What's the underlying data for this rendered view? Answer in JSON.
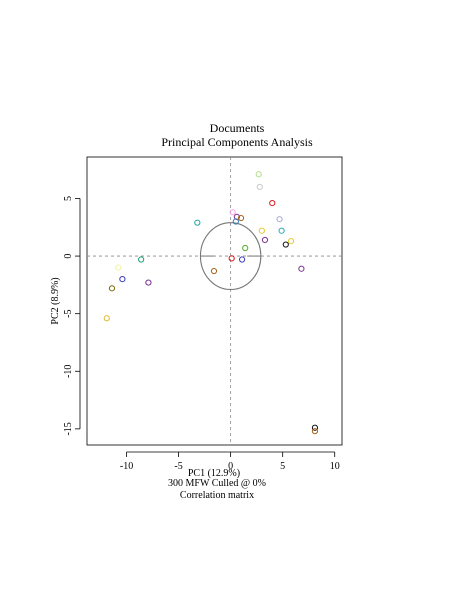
{
  "chart_data": {
    "type": "scatter",
    "title": "Documents",
    "subtitle": "Principal Components Analysis",
    "xlabel": "PC1 (12.9%)",
    "ylabel": "PC2 (8.9%)",
    "caption_lines": [
      "300 MFW  Culled @ 0%",
      "Correlation matrix"
    ],
    "xlim": [
      -13.8,
      10.7
    ],
    "ylim": [
      -16.4,
      8.6
    ],
    "x_ticks": [
      -10,
      -5,
      0,
      5,
      10
    ],
    "y_ticks": [
      -15,
      -10,
      -5,
      0,
      5
    ],
    "grid": false,
    "reference_lines": {
      "x": 0,
      "y": 0,
      "style": "dashed"
    },
    "correlation_circle": {
      "center": [
        0,
        0
      ],
      "radius": 2.9
    },
    "points": [
      {
        "x": 2.7,
        "y": 7.1,
        "color": "#b2df8a"
      },
      {
        "x": 2.8,
        "y": 6.0,
        "color": "#c9c9c9"
      },
      {
        "x": 4.0,
        "y": 4.6,
        "color": "#d7191c"
      },
      {
        "x": 0.2,
        "y": 3.8,
        "color": "#f4a6e6"
      },
      {
        "x": 0.6,
        "y": 3.4,
        "color": "#7b3294"
      },
      {
        "x": 1.0,
        "y": 3.3,
        "color": "#a6611a"
      },
      {
        "x": 4.7,
        "y": 3.2,
        "color": "#a8a8d8"
      },
      {
        "x": 0.5,
        "y": 3.0,
        "color": "#2c7bb6"
      },
      {
        "x": -3.2,
        "y": 2.9,
        "color": "#1aa6a6"
      },
      {
        "x": 3.0,
        "y": 2.2,
        "color": "#e5c830"
      },
      {
        "x": 4.9,
        "y": 2.2,
        "color": "#2ca7b8"
      },
      {
        "x": 3.3,
        "y": 1.4,
        "color": "#7b3294"
      },
      {
        "x": 5.8,
        "y": 1.3,
        "color": "#e5c830"
      },
      {
        "x": 5.3,
        "y": 1.0,
        "color": "#111111"
      },
      {
        "x": 1.4,
        "y": 0.7,
        "color": "#4dac26"
      },
      {
        "x": 0.1,
        "y": -0.2,
        "color": "#d7191c"
      },
      {
        "x": 1.1,
        "y": -0.3,
        "color": "#3b3bb5"
      },
      {
        "x": -1.6,
        "y": -1.3,
        "color": "#a6611a"
      },
      {
        "x": 6.8,
        "y": -1.1,
        "color": "#7b3294"
      },
      {
        "x": -8.6,
        "y": -0.3,
        "color": "#1b9e77"
      },
      {
        "x": -10.8,
        "y": -1.0,
        "color": "#f2f2a0"
      },
      {
        "x": -10.4,
        "y": -2.0,
        "color": "#3b3bb5"
      },
      {
        "x": -7.9,
        "y": -2.3,
        "color": "#7b3294"
      },
      {
        "x": -11.4,
        "y": -2.8,
        "color": "#7a6a00"
      },
      {
        "x": -11.9,
        "y": -5.4,
        "color": "#e5b830"
      },
      {
        "x": 8.1,
        "y": -14.9,
        "color": "#111111"
      },
      {
        "x": 8.1,
        "y": -15.2,
        "color": "#a6611a"
      }
    ]
  }
}
